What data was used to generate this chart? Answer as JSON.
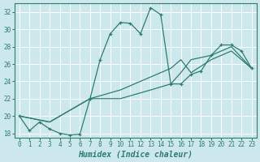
{
  "xlabel": "Humidex (Indice chaleur)",
  "bg_color": "#cde8ec",
  "grid_color": "#ffffff",
  "line_color": "#2d7d6e",
  "xlim": [
    -0.5,
    23.5
  ],
  "ylim": [
    17.5,
    33.0
  ],
  "xticks": [
    0,
    1,
    2,
    3,
    4,
    5,
    6,
    7,
    8,
    9,
    10,
    11,
    12,
    13,
    14,
    15,
    16,
    17,
    18,
    19,
    20,
    21,
    22,
    23
  ],
  "yticks": [
    18,
    20,
    22,
    24,
    26,
    28,
    30,
    32
  ],
  "main_x": [
    0,
    1,
    2,
    3,
    4,
    5,
    6,
    7,
    8,
    9,
    10,
    11,
    12,
    13,
    14,
    15,
    16,
    17,
    18,
    19,
    20,
    21,
    22,
    23
  ],
  "main_y": [
    20,
    18.3,
    19.3,
    18.5,
    18.0,
    17.8,
    17.9,
    22.0,
    26.5,
    29.5,
    30.8,
    30.7,
    29.5,
    32.5,
    31.7,
    23.7,
    23.7,
    24.8,
    25.2,
    27.0,
    28.2,
    28.2,
    27.5,
    25.5
  ],
  "line2_x": [
    0,
    3,
    7,
    10,
    13,
    15,
    16,
    17,
    19,
    21,
    23
  ],
  "line2_y": [
    20,
    19.3,
    22.0,
    23.0,
    24.5,
    25.5,
    26.5,
    25.0,
    26.5,
    27.5,
    25.5
  ],
  "line3_x": [
    0,
    3,
    7,
    10,
    13,
    15,
    16,
    17,
    19,
    21,
    23
  ],
  "line3_y": [
    20,
    19.3,
    22.0,
    22.0,
    23.0,
    23.7,
    25.0,
    26.5,
    27.0,
    28.0,
    25.5
  ]
}
